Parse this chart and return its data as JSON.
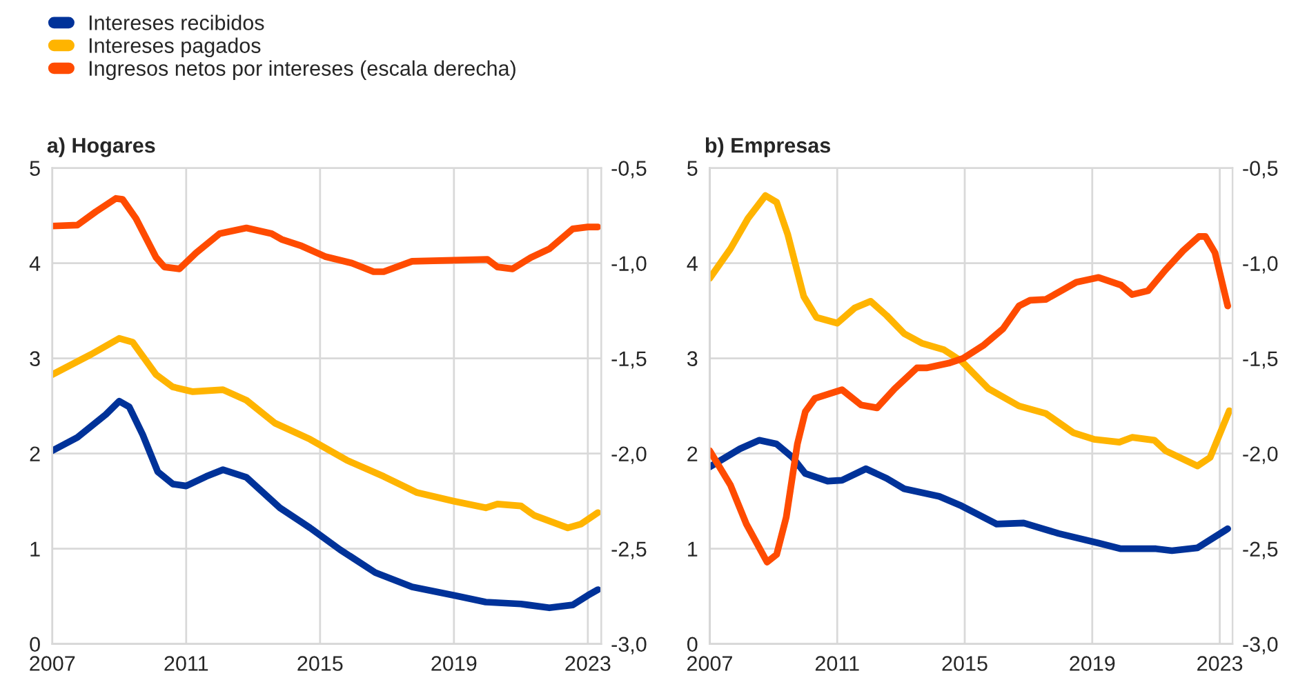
{
  "chart_data": [
    {
      "type": "line",
      "title": "a) Hogares",
      "xlim": [
        2007,
        2023.4
      ],
      "xticks": [
        2007,
        2011,
        2015,
        2019,
        2023
      ],
      "ylim": [
        0,
        5
      ],
      "yticks": [
        0,
        1,
        2,
        3,
        4,
        5
      ],
      "y2lim": [
        -3.0,
        -0.5
      ],
      "y2ticks": [
        {
          "value": -3.0,
          "label": "-3,0"
        },
        {
          "value": -2.5,
          "label": "-2,5"
        },
        {
          "value": -2.0,
          "label": "-2,0"
        },
        {
          "value": -1.5,
          "label": "-1,5"
        },
        {
          "value": -1.0,
          "label": "-1,0"
        },
        {
          "value": -0.5,
          "label": "-0,5"
        }
      ],
      "grid": true,
      "legend": "top left",
      "series": [
        {
          "name": "Intereses recibidos",
          "color": "#003299",
          "x": [
            2007,
            2007.75,
            2008.6,
            2009.0,
            2009.3,
            2009.7,
            2010.15,
            2010.6,
            2011.0,
            2011.6,
            2012.1,
            2012.8,
            2013.8,
            2014.7,
            2015.6,
            2016.65,
            2017.75,
            2019.0,
            2019.95,
            2021.0,
            2021.85,
            2022.55,
            2023.0,
            2023.3
          ],
          "values": [
            2.03,
            2.17,
            2.41,
            2.55,
            2.49,
            2.2,
            1.81,
            1.68,
            1.66,
            1.76,
            1.83,
            1.75,
            1.43,
            1.22,
            0.99,
            0.75,
            0.6,
            0.51,
            0.44,
            0.42,
            0.38,
            0.41,
            0.51,
            0.57
          ]
        },
        {
          "name": "Intereses pagados",
          "color": "#ffb400",
          "x": [
            2007,
            2008.15,
            2009.0,
            2009.4,
            2010.1,
            2010.6,
            2011.2,
            2012.1,
            2012.8,
            2013.65,
            2014.7,
            2015.8,
            2016.9,
            2017.9,
            2019.0,
            2019.95,
            2020.3,
            2021.0,
            2021.4,
            2022.4,
            2022.8,
            2023.3
          ],
          "values": [
            2.83,
            3.04,
            3.21,
            3.17,
            2.83,
            2.7,
            2.65,
            2.67,
            2.56,
            2.32,
            2.15,
            1.93,
            1.76,
            1.59,
            1.5,
            1.43,
            1.47,
            1.45,
            1.35,
            1.22,
            1.26,
            1.38
          ]
        },
        {
          "name": "Ingresos netos por intereses (escala derecha)",
          "color": "#ff4b00",
          "axis": "y2",
          "x": [
            2007,
            2007.75,
            2008.3,
            2008.9,
            2009.1,
            2009.5,
            2010.1,
            2010.35,
            2010.8,
            2011.3,
            2012.0,
            2012.8,
            2013.55,
            2013.85,
            2014.45,
            2015.15,
            2015.95,
            2016.6,
            2016.9,
            2017.75,
            2019.0,
            2020.0,
            2020.3,
            2020.75,
            2021.3,
            2021.85,
            2022.55,
            2023.0,
            2023.3
          ],
          "values": [
            -0.805,
            -0.8,
            -0.73,
            -0.66,
            -0.665,
            -0.765,
            -0.97,
            -1.02,
            -1.03,
            -0.945,
            -0.845,
            -0.815,
            -0.845,
            -0.875,
            -0.91,
            -0.965,
            -1.0,
            -1.045,
            -1.045,
            -0.99,
            -0.985,
            -0.98,
            -1.02,
            -1.03,
            -0.97,
            -0.925,
            -0.82,
            -0.81,
            -0.81
          ]
        }
      ]
    },
    {
      "type": "line",
      "title": "b) Empresas",
      "xlim": [
        2007,
        2023.4
      ],
      "xticks": [
        2007,
        2011,
        2015,
        2019,
        2023
      ],
      "ylim": [
        0,
        5
      ],
      "yticks": [
        0,
        1,
        2,
        3,
        4,
        5
      ],
      "y2lim": [
        -3.0,
        -0.5
      ],
      "y2ticks": [
        {
          "value": -3.0,
          "label": "-3,0"
        },
        {
          "value": -2.5,
          "label": "-2,5"
        },
        {
          "value": -2.0,
          "label": "-2,0"
        },
        {
          "value": -1.5,
          "label": "-1,5"
        },
        {
          "value": -1.0,
          "label": "-1,0"
        },
        {
          "value": -0.5,
          "label": "-0,5"
        }
      ],
      "grid": true,
      "series": [
        {
          "color": "#003299",
          "x": [
            2007,
            2007.95,
            2008.55,
            2009.1,
            2009.6,
            2010.0,
            2010.7,
            2011.15,
            2011.9,
            2012.55,
            2013.1,
            2014.2,
            2014.9,
            2016.0,
            2016.85,
            2017.95,
            2019.2,
            2019.9,
            2021.0,
            2021.5,
            2022.3,
            2023.25
          ],
          "values": [
            1.86,
            2.05,
            2.14,
            2.1,
            1.96,
            1.79,
            1.71,
            1.72,
            1.84,
            1.74,
            1.63,
            1.55,
            1.45,
            1.26,
            1.27,
            1.16,
            1.06,
            1.0,
            1.0,
            0.98,
            1.01,
            1.21
          ]
        },
        {
          "color": "#ffb400",
          "x": [
            2007,
            2007.65,
            2008.2,
            2008.75,
            2009.1,
            2009.45,
            2009.95,
            2010.35,
            2011.0,
            2011.55,
            2012.05,
            2012.55,
            2013.1,
            2013.65,
            2014.35,
            2014.9,
            2015.75,
            2016.7,
            2017.55,
            2018.4,
            2019.05,
            2019.85,
            2020.25,
            2020.95,
            2021.3,
            2022.3,
            2022.7,
            2023.3
          ],
          "values": [
            3.84,
            4.15,
            4.47,
            4.71,
            4.64,
            4.3,
            3.65,
            3.43,
            3.37,
            3.53,
            3.6,
            3.45,
            3.26,
            3.16,
            3.09,
            2.97,
            2.68,
            2.5,
            2.42,
            2.22,
            2.15,
            2.12,
            2.17,
            2.14,
            2.03,
            1.87,
            1.96,
            2.45
          ]
        },
        {
          "color": "#ff4b00",
          "axis": "y2",
          "x": [
            2007,
            2007.65,
            2008.15,
            2008.8,
            2009.1,
            2009.4,
            2009.75,
            2010.0,
            2010.3,
            2011.15,
            2011.75,
            2012.25,
            2012.8,
            2013.5,
            2013.8,
            2014.5,
            2014.95,
            2015.6,
            2016.2,
            2016.7,
            2017.05,
            2017.55,
            2018.5,
            2019.2,
            2019.9,
            2020.25,
            2020.75,
            2021.3,
            2021.85,
            2022.35,
            2022.55,
            2022.85,
            2023.25
          ],
          "values": [
            -1.985,
            -2.165,
            -2.37,
            -2.57,
            -2.53,
            -2.335,
            -1.95,
            -1.78,
            -1.71,
            -1.665,
            -1.745,
            -1.76,
            -1.66,
            -1.55,
            -1.55,
            -1.525,
            -1.5,
            -1.43,
            -1.345,
            -1.225,
            -1.195,
            -1.19,
            -1.1,
            -1.075,
            -1.115,
            -1.165,
            -1.145,
            -1.035,
            -0.935,
            -0.86,
            -0.86,
            -0.945,
            -1.225
          ]
        }
      ]
    }
  ]
}
